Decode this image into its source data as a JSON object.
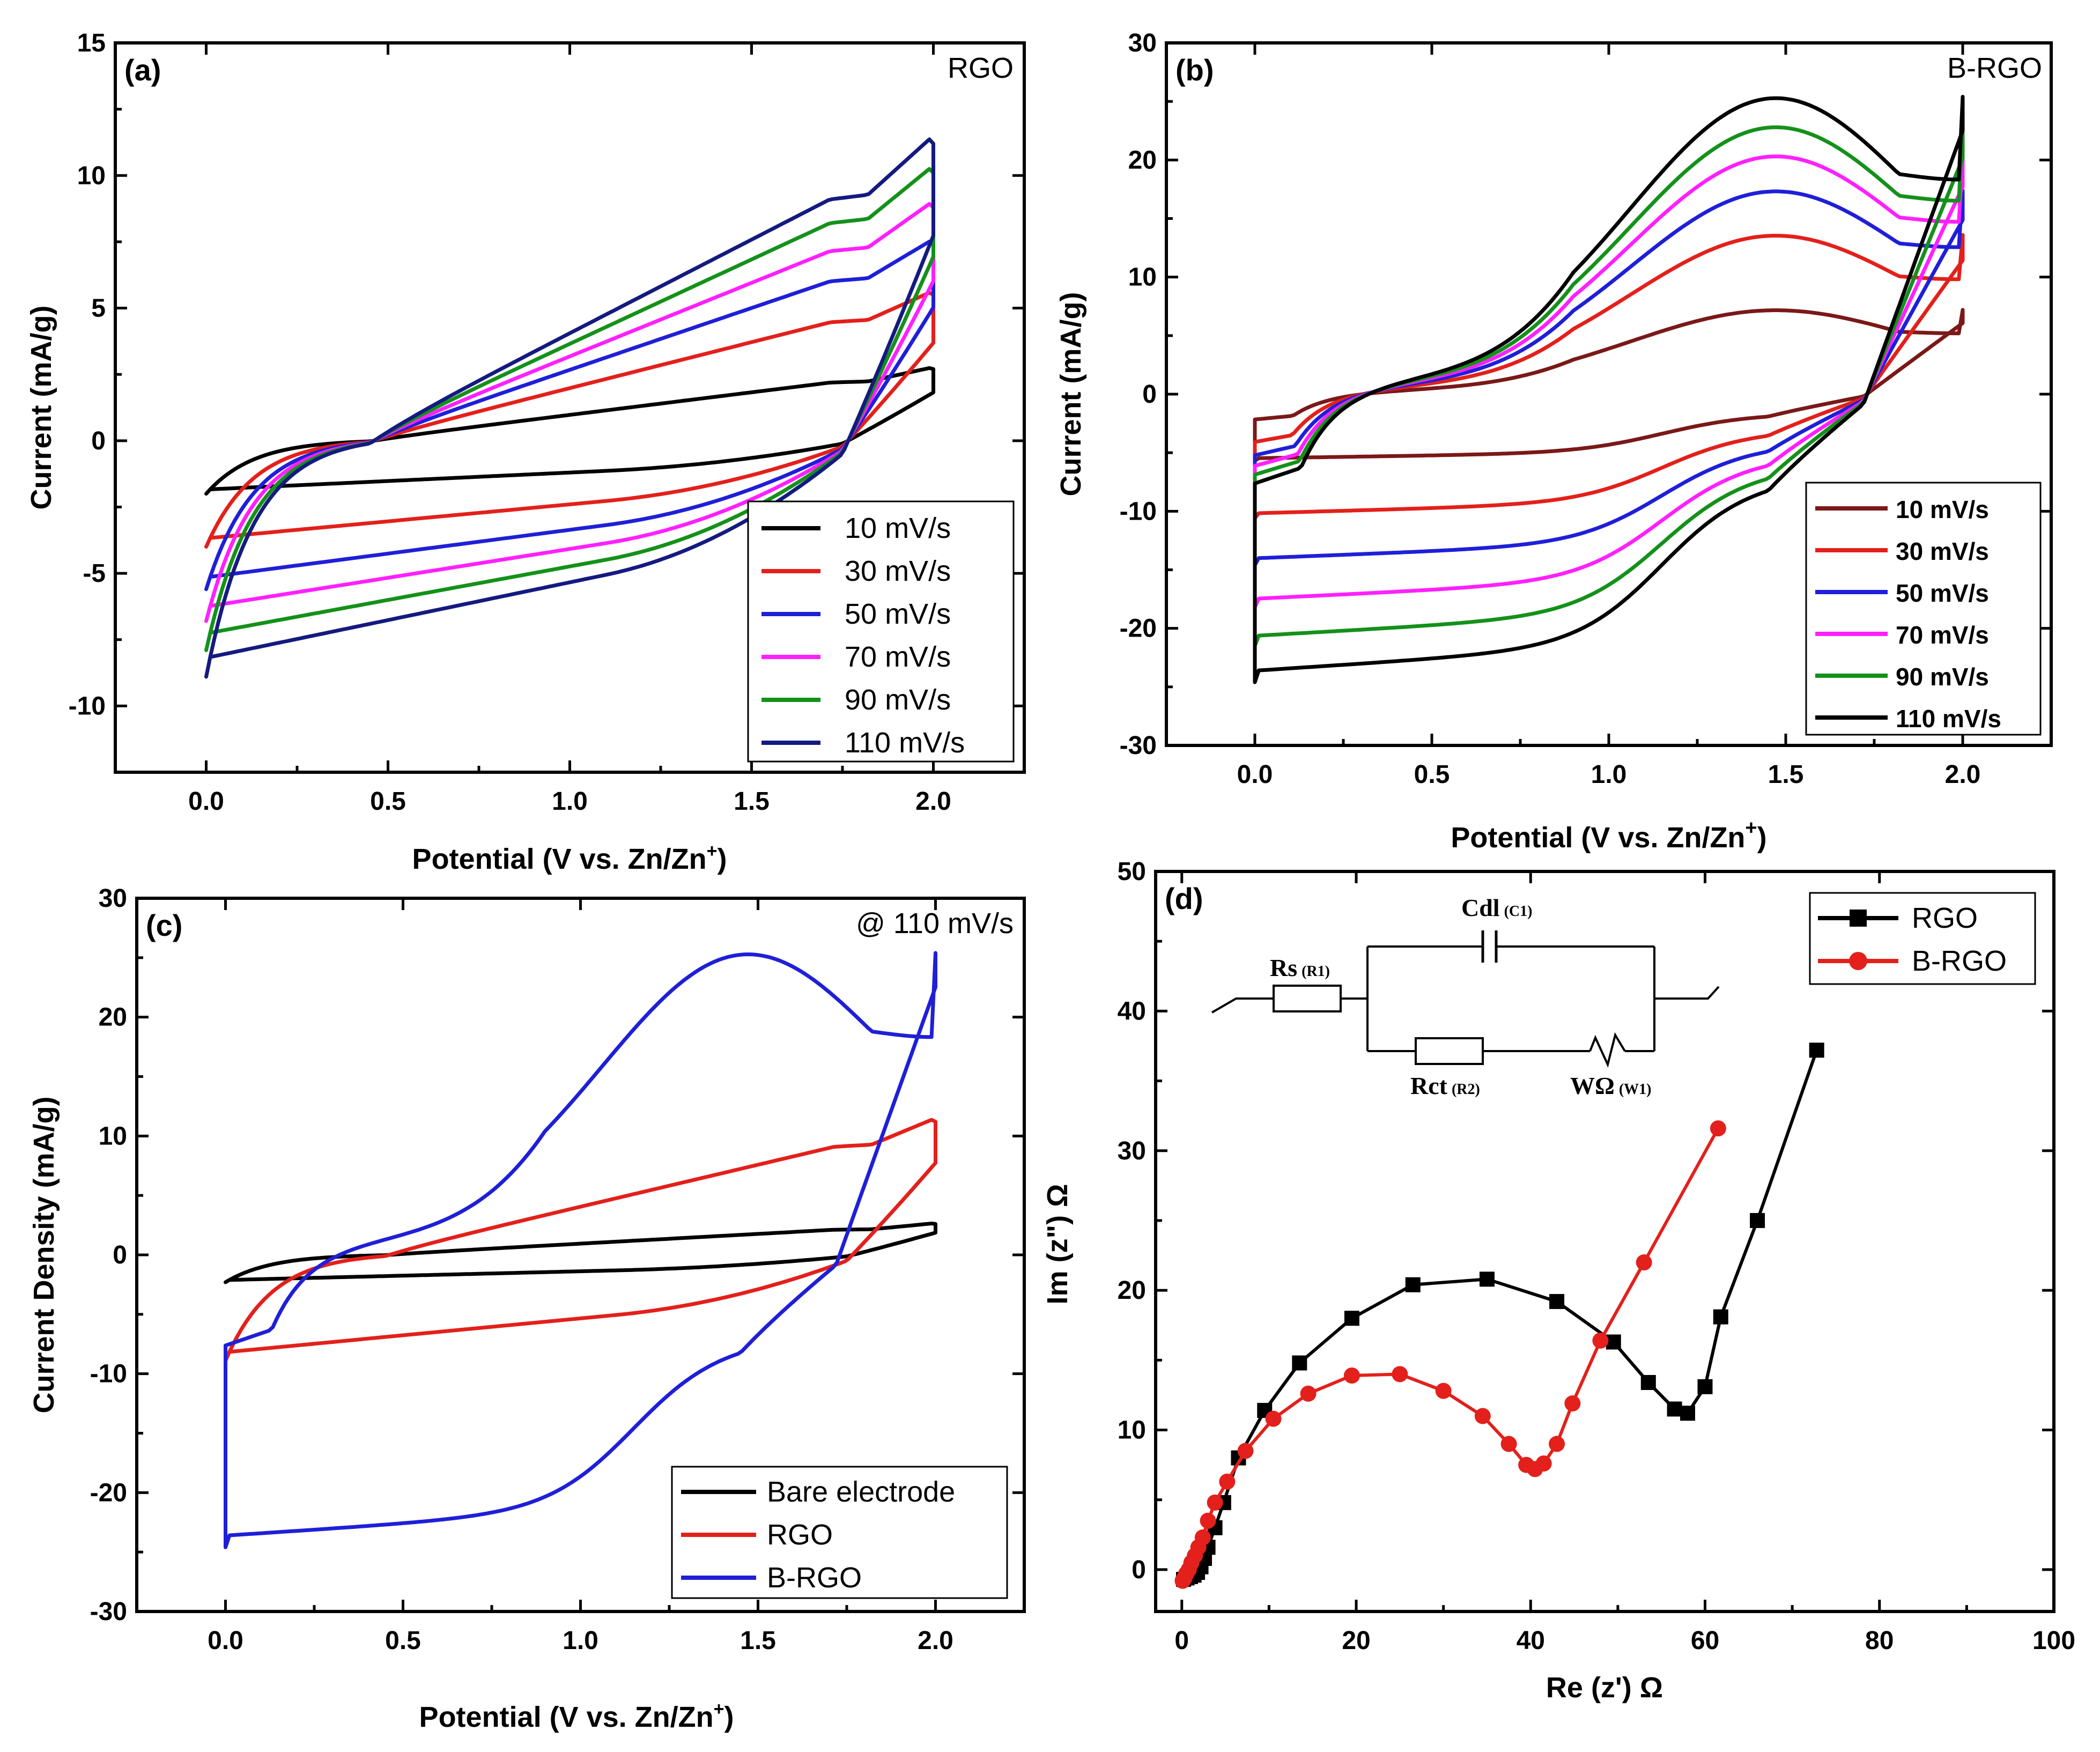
{
  "colors": {
    "black": "#000000",
    "red": "#e3201b",
    "blue": "#1f1fd8",
    "magenta": "#ff20ff",
    "green": "#14911a",
    "navy": "#141a80",
    "maroon": "#7b1818"
  },
  "chart_data": [
    {
      "id": "a",
      "type": "line",
      "panel_label": "(a)",
      "corner_label": "RGO",
      "xlabel_main": "Potential (V vs. Zn/Zn",
      "xlabel_sup": "+",
      "xlabel_end": ")",
      "ylabel": "Current (mA/g)",
      "xlim": [
        -0.25,
        2.25
      ],
      "ylim": [
        -12.5,
        15
      ],
      "xticks": [
        0.0,
        0.5,
        1.0,
        1.5,
        2.0
      ],
      "xtick_labels": [
        "0.0",
        "0.5",
        "1.0",
        "1.5",
        "2.0"
      ],
      "yticks": [
        -10,
        -5,
        0,
        5,
        10,
        15
      ],
      "ytick_labels": [
        "-10",
        "-5",
        "0",
        "5",
        "10",
        "15"
      ],
      "legend": {
        "position": "bottom-right",
        "style": "normal"
      },
      "series": [
        {
          "name": "10 mV/s",
          "color": "black",
          "peak": 2.7,
          "vmin": -2.0,
          "s": 0.14,
          "i": 0.2
        },
        {
          "name": "30 mV/s",
          "color": "red",
          "peak": 5.5,
          "vmin": -4.0,
          "s": 0.28,
          "i": 0.4
        },
        {
          "name": "50 mV/s",
          "color": "blue",
          "peak": 7.4,
          "vmin": -5.6,
          "s": 0.4,
          "i": 0.55
        },
        {
          "name": "70 mV/s",
          "color": "magenta",
          "peak": 8.8,
          "vmin": -6.8,
          "s": 0.48,
          "i": 0.67
        },
        {
          "name": "90 mV/s",
          "color": "green",
          "peak": 10.1,
          "vmin": -7.9,
          "s": 0.55,
          "i": 0.78
        },
        {
          "name": "110 mV/s",
          "color": "navy",
          "peak": 11.2,
          "vmin": -8.9,
          "s": 0.62,
          "i": 0.88
        }
      ]
    },
    {
      "id": "b",
      "type": "line",
      "panel_label": "(b)",
      "corner_label": "B-RGO",
      "xlabel_main": "Potential (V vs. Zn/Zn",
      "xlabel_sup": "+",
      "xlabel_end": ")",
      "ylabel": "Current (mA/g)",
      "xlim": [
        -0.25,
        2.25
      ],
      "ylim": [
        -30,
        30
      ],
      "xticks": [
        0.0,
        0.5,
        1.0,
        1.5,
        2.0
      ],
      "xtick_labels": [
        "0.0",
        "0.5",
        "1.0",
        "1.5",
        "2.0"
      ],
      "yticks": [
        -30,
        -20,
        -10,
        0,
        10,
        20,
        30
      ],
      "ytick_labels": [
        "-30",
        "-20",
        "-10",
        "0",
        "10",
        "20",
        "30"
      ],
      "legend": {
        "position": "bottom-right",
        "style": "bold"
      },
      "series": [
        {
          "name": "10 mV/s",
          "color": "maroon",
          "peak": 7.2,
          "vmin": -5.7,
          "s": 0.14,
          "i": 0.22
        },
        {
          "name": "30 mV/s",
          "color": "red",
          "peak": 13.6,
          "vmin": -10.6,
          "s": 0.35,
          "i": 0.44
        },
        {
          "name": "50 mV/s",
          "color": "blue",
          "peak": 17.4,
          "vmin": -14.6,
          "s": 0.53,
          "i": 0.61
        },
        {
          "name": "70 mV/s",
          "color": "magenta",
          "peak": 20.4,
          "vmin": -18.2,
          "s": 0.7,
          "i": 0.75
        },
        {
          "name": "90 mV/s",
          "color": "green",
          "peak": 22.9,
          "vmin": -21.5,
          "s": 0.86,
          "i": 0.88
        },
        {
          "name": "110 mV/s",
          "color": "black",
          "peak": 25.4,
          "vmin": -24.6,
          "s": 1.0,
          "i": 1.0
        }
      ]
    },
    {
      "id": "c",
      "type": "line",
      "panel_label": "(c)",
      "corner_label": "@ 110 mV/s",
      "xlabel_main": "Potential (V vs. Zn/Zn",
      "xlabel_sup": "+",
      "xlabel_end": ")",
      "ylabel": "Current Density (mA/g)",
      "xlim": [
        -0.25,
        2.25
      ],
      "ylim": [
        -30,
        30
      ],
      "xticks": [
        0.0,
        0.5,
        1.0,
        1.5,
        2.0
      ],
      "xtick_labels": [
        "0.0",
        "0.5",
        "1.0",
        "1.5",
        "2.0"
      ],
      "yticks": [
        -30,
        -20,
        -10,
        0,
        10,
        20,
        30
      ],
      "ytick_labels": [
        "-30",
        "-20",
        "-10",
        "0",
        "10",
        "20",
        "30"
      ],
      "legend": {
        "position": "bottom-right",
        "style": "normal"
      },
      "series": [
        {
          "name": "Bare electrode",
          "color": "black"
        },
        {
          "name": "RGO",
          "color": "red"
        },
        {
          "name": "B-RGO",
          "color": "blue"
        }
      ]
    },
    {
      "id": "d",
      "type": "scatter",
      "panel_label": "(d)",
      "xlabel_main": "Re (z') Ω",
      "ylabel": "Im (z\") Ω",
      "xlim": [
        -3,
        100
      ],
      "ylim": [
        -3,
        50
      ],
      "xticks": [
        0,
        20,
        40,
        60,
        80,
        100
      ],
      "xtick_labels": [
        "0",
        "20",
        "40",
        "60",
        "80",
        "100"
      ],
      "yticks": [
        0,
        10,
        20,
        30,
        40,
        50
      ],
      "ytick_labels": [
        "0",
        "10",
        "20",
        "30",
        "40",
        "50"
      ],
      "legend": {
        "position": "top-right",
        "style": "normal"
      },
      "circuit": {
        "rs": "Rs",
        "rs_sub": "(R1)",
        "cdl": "Cdl",
        "cdl_sub": "(C1)",
        "rct": "Rct",
        "rct_sub": "(R2)",
        "w": "WΩ",
        "w_sub": "(W1)"
      },
      "series": [
        {
          "name": "RGO",
          "color": "black",
          "marker": "square",
          "x": [
            0.2,
            0.6,
            1.0,
            1.4,
            1.8,
            2.2,
            2.6,
            3.0,
            3.8,
            4.8,
            6.5,
            9.5,
            13.5,
            19.5,
            26.5,
            35.0,
            43.0,
            49.5,
            53.5,
            56.5,
            58.0,
            60.0,
            61.8,
            66.0,
            72.8
          ],
          "y": [
            -0.7,
            -0.6,
            -0.5,
            -0.4,
            -0.2,
            0.2,
            0.8,
            1.6,
            3.0,
            4.8,
            8.0,
            11.4,
            14.8,
            18.0,
            20.4,
            20.8,
            19.2,
            16.3,
            13.4,
            11.5,
            11.2,
            13.1,
            18.1,
            25.0,
            37.2
          ]
        },
        {
          "name": "B-RGO",
          "color": "red",
          "marker": "circle",
          "x": [
            0.1,
            0.3,
            0.5,
            0.8,
            1.1,
            1.5,
            1.9,
            2.4,
            3.0,
            3.8,
            5.2,
            7.3,
            10.5,
            14.5,
            19.5,
            25.0,
            30.0,
            34.5,
            37.5,
            39.5,
            40.5,
            41.5,
            43.0,
            44.8,
            48.0,
            53.0,
            61.5
          ],
          "y": [
            -0.8,
            -0.6,
            -0.3,
            0.0,
            0.5,
            1.0,
            1.6,
            2.3,
            3.5,
            4.8,
            6.3,
            8.5,
            10.8,
            12.6,
            13.9,
            14.0,
            12.8,
            11.0,
            9.0,
            7.5,
            7.2,
            7.6,
            9.0,
            11.9,
            16.4,
            22.0,
            31.6
          ]
        }
      ]
    }
  ]
}
